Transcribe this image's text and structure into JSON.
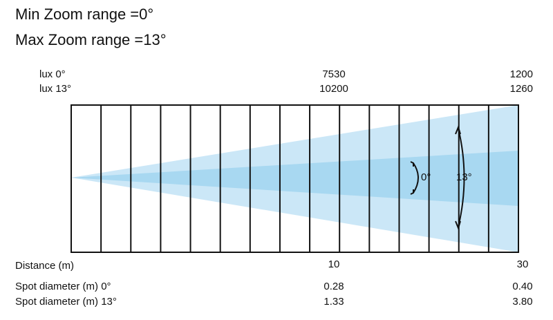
{
  "header": {
    "min_zoom": "Min Zoom range =0°",
    "max_zoom": "Max Zoom range =13°"
  },
  "lux": [
    {
      "label": "lux 0°",
      "values": [
        "7530",
        "1200"
      ]
    },
    {
      "label": "lux 13°",
      "values": [
        "10200",
        "1260"
      ]
    }
  ],
  "distance": {
    "label": "Distance (m)",
    "values": [
      "10",
      "30"
    ]
  },
  "spot": [
    {
      "label": "Spot diameter (m) 0°",
      "values": [
        "0.28",
        "0.40"
      ]
    },
    {
      "label": "Spot diameter (m) 13°",
      "values": [
        "1.33",
        "3.80"
      ]
    }
  ],
  "beam": {
    "inner_label": "0°",
    "outer_label": "13°"
  }
}
